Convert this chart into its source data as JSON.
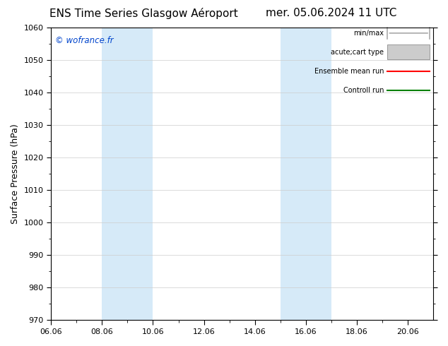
{
  "title_left": "ENS Time Series Glasgow Aéroport",
  "title_right": "mer. 05.06.2024 11 UTC",
  "ylabel": "Surface Pressure (hPa)",
  "ylim": [
    970,
    1060
  ],
  "yticks": [
    970,
    980,
    990,
    1000,
    1010,
    1020,
    1030,
    1040,
    1050,
    1060
  ],
  "xlim": [
    0,
    15
  ],
  "xticks_labels": [
    "06.06",
    "08.06",
    "10.06",
    "12.06",
    "14.06",
    "16.06",
    "18.06",
    "20.06"
  ],
  "xtick_positions": [
    0,
    2,
    4,
    6,
    8,
    10,
    12,
    14
  ],
  "shade_bands": [
    {
      "x_start": 2.0,
      "x_end": 4.0,
      "color": "#d6eaf8"
    },
    {
      "x_start": 9.0,
      "x_end": 11.0,
      "color": "#d6eaf8"
    }
  ],
  "watermark": "© wofrance.fr",
  "watermark_color": "#0044cc",
  "legend_items": [
    {
      "label": "min/max",
      "color": "#aaaaaa",
      "style": "minmax"
    },
    {
      "label": "acute;cart type",
      "color": "#cccccc",
      "style": "box"
    },
    {
      "label": "Ensemble mean run",
      "color": "#ff0000",
      "style": "line"
    },
    {
      "label": "Controll run",
      "color": "#008000",
      "style": "line"
    }
  ],
  "background_color": "#ffffff",
  "plot_bg_color": "#ffffff",
  "grid_color": "#cccccc",
  "tick_label_fontsize": 8,
  "title_fontsize": 11,
  "ylabel_fontsize": 9
}
